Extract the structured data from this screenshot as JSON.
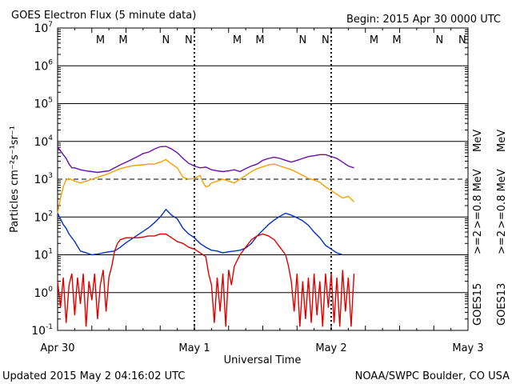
{
  "chart_data": {
    "type": "line",
    "title": "GOES Electron Flux (5 minute data)",
    "begin_label": "Begin: 2015 Apr 30 0000 UTC",
    "xlabel": "Universal Time",
    "ylabel": "Particles cm⁻²s⁻¹sr⁻¹",
    "x_unit": "hours since 2015-04-30 00:00 UTC",
    "xlim": [
      0,
      72
    ],
    "ylim_log10": [
      -1,
      7
    ],
    "x_ticks": [
      {
        "x": 0,
        "label": "Apr 30"
      },
      {
        "x": 24,
        "label": "May 1"
      },
      {
        "x": 48,
        "label": "May 2"
      },
      {
        "x": 72,
        "label": "May 3"
      }
    ],
    "y_ticks": [
      {
        "exp": 7,
        "base": "10",
        "power": "7"
      },
      {
        "exp": 6,
        "base": "10",
        "power": "6"
      },
      {
        "exp": 5,
        "base": "10",
        "power": "5"
      },
      {
        "exp": 4,
        "base": "10",
        "power": "4"
      },
      {
        "exp": 3,
        "base": "10",
        "power": "3"
      },
      {
        "exp": 2,
        "base": "10",
        "power": "2"
      },
      {
        "exp": 1,
        "base": "10",
        "power": "1"
      },
      {
        "exp": 0,
        "base": "10",
        "power": "0"
      },
      {
        "exp": -1,
        "base": "10",
        "power": "-1"
      }
    ],
    "threshold_log10": 3,
    "eclipse_markers": [
      {
        "x": 7.5,
        "label": "M",
        "color": "#e00000"
      },
      {
        "x": 11.5,
        "label": "M",
        "color": "#0030c8"
      },
      {
        "x": 19.0,
        "label": "N",
        "color": "#e00000"
      },
      {
        "x": 23.0,
        "label": "N",
        "color": "#0030c8"
      },
      {
        "x": 31.5,
        "label": "M",
        "color": "#e00000"
      },
      {
        "x": 35.5,
        "label": "M",
        "color": "#0030c8"
      },
      {
        "x": 43.0,
        "label": "N",
        "color": "#e00000"
      },
      {
        "x": 47.0,
        "label": "N",
        "color": "#0030c8"
      },
      {
        "x": 55.5,
        "label": "M",
        "color": "#e00000"
      },
      {
        "x": 59.5,
        "label": "M",
        "color": "#0030c8"
      },
      {
        "x": 67.0,
        "label": "N",
        "color": "#e00000"
      },
      {
        "x": 71.0,
        "label": "N",
        "color": "#0030c8"
      }
    ],
    "midnight_lines_x": [
      24,
      48
    ],
    "series": [
      {
        "name": "GOES15 >=0.8 MeV",
        "color": "#6a0dad",
        "log10_points": [
          [
            0,
            3.85
          ],
          [
            0.5,
            3.75
          ],
          [
            1,
            3.65
          ],
          [
            1.5,
            3.55
          ],
          [
            2,
            3.4
          ],
          [
            2.5,
            3.3
          ],
          [
            3,
            3.3
          ],
          [
            4,
            3.25
          ],
          [
            5,
            3.22
          ],
          [
            6,
            3.2
          ],
          [
            7,
            3.18
          ],
          [
            8,
            3.2
          ],
          [
            9,
            3.22
          ],
          [
            10,
            3.3
          ],
          [
            11,
            3.38
          ],
          [
            12,
            3.45
          ],
          [
            13,
            3.52
          ],
          [
            14,
            3.6
          ],
          [
            15,
            3.68
          ],
          [
            16,
            3.72
          ],
          [
            17,
            3.8
          ],
          [
            18,
            3.86
          ],
          [
            19,
            3.87
          ],
          [
            20,
            3.8
          ],
          [
            21,
            3.7
          ],
          [
            22,
            3.55
          ],
          [
            23,
            3.42
          ],
          [
            24,
            3.35
          ],
          [
            25,
            3.3
          ],
          [
            26,
            3.32
          ],
          [
            27,
            3.25
          ],
          [
            28,
            3.22
          ],
          [
            29,
            3.2
          ],
          [
            30,
            3.22
          ],
          [
            31,
            3.25
          ],
          [
            32,
            3.2
          ],
          [
            33,
            3.28
          ],
          [
            34,
            3.35
          ],
          [
            35,
            3.4
          ],
          [
            36,
            3.5
          ],
          [
            37,
            3.55
          ],
          [
            38,
            3.58
          ],
          [
            39,
            3.55
          ],
          [
            40,
            3.5
          ],
          [
            41,
            3.45
          ],
          [
            42,
            3.5
          ],
          [
            43,
            3.55
          ],
          [
            44,
            3.6
          ],
          [
            45,
            3.62
          ],
          [
            46,
            3.65
          ],
          [
            47,
            3.65
          ],
          [
            48,
            3.6
          ],
          [
            49,
            3.55
          ],
          [
            50,
            3.45
          ],
          [
            51,
            3.35
          ],
          [
            52,
            3.3
          ]
        ]
      },
      {
        "name": "GOES13 >=0.8 MeV",
        "color": "#f5a000",
        "log10_points": [
          [
            0,
            2.1
          ],
          [
            0.5,
            2.5
          ],
          [
            1,
            2.8
          ],
          [
            1.5,
            2.98
          ],
          [
            2,
            3.02
          ],
          [
            3,
            2.95
          ],
          [
            4,
            2.9
          ],
          [
            5,
            2.95
          ],
          [
            6,
            3.0
          ],
          [
            7,
            3.05
          ],
          [
            8,
            3.1
          ],
          [
            9,
            3.15
          ],
          [
            10,
            3.22
          ],
          [
            11,
            3.28
          ],
          [
            12,
            3.32
          ],
          [
            13,
            3.35
          ],
          [
            14,
            3.37
          ],
          [
            15,
            3.38
          ],
          [
            16,
            3.4
          ],
          [
            17,
            3.4
          ],
          [
            18,
            3.45
          ],
          [
            19,
            3.52
          ],
          [
            20,
            3.4
          ],
          [
            21,
            3.3
          ],
          [
            22,
            3.05
          ],
          [
            23,
            3.0
          ],
          [
            24,
            3.02
          ],
          [
            25,
            3.1
          ],
          [
            25.5,
            2.92
          ],
          [
            26,
            2.8
          ],
          [
            26.5,
            2.82
          ],
          [
            27,
            2.9
          ],
          [
            28,
            2.95
          ],
          [
            29,
            3.0
          ],
          [
            30,
            2.95
          ],
          [
            31,
            2.9
          ],
          [
            32,
            3.0
          ],
          [
            33,
            3.1
          ],
          [
            34,
            3.2
          ],
          [
            35,
            3.28
          ],
          [
            36,
            3.33
          ],
          [
            37,
            3.38
          ],
          [
            38,
            3.4
          ],
          [
            39,
            3.35
          ],
          [
            40,
            3.3
          ],
          [
            41,
            3.25
          ],
          [
            42,
            3.18
          ],
          [
            43,
            3.1
          ],
          [
            44,
            3.02
          ],
          [
            45,
            2.98
          ],
          [
            46,
            2.92
          ],
          [
            47,
            2.8
          ],
          [
            48,
            2.7
          ],
          [
            49,
            2.6
          ],
          [
            50,
            2.5
          ],
          [
            51,
            2.55
          ],
          [
            52,
            2.4
          ]
        ]
      },
      {
        "name": "GOES15 >=2 MeV",
        "color": "#0030c8",
        "log10_points": [
          [
            0,
            2.1
          ],
          [
            0.5,
            1.95
          ],
          [
            1,
            1.8
          ],
          [
            1.5,
            1.7
          ],
          [
            2,
            1.55
          ],
          [
            3,
            1.35
          ],
          [
            4,
            1.1
          ],
          [
            5,
            1.05
          ],
          [
            6,
            1.0
          ],
          [
            7,
            1.02
          ],
          [
            8,
            1.05
          ],
          [
            9,
            1.08
          ],
          [
            10,
            1.1
          ],
          [
            11,
            1.2
          ],
          [
            12,
            1.32
          ],
          [
            13,
            1.42
          ],
          [
            14,
            1.52
          ],
          [
            15,
            1.62
          ],
          [
            16,
            1.72
          ],
          [
            17,
            1.85
          ],
          [
            18,
            2.0
          ],
          [
            19,
            2.2
          ],
          [
            20,
            2.05
          ],
          [
            21,
            1.95
          ],
          [
            22,
            1.7
          ],
          [
            23,
            1.55
          ],
          [
            24,
            1.45
          ],
          [
            25,
            1.3
          ],
          [
            26,
            1.2
          ],
          [
            27,
            1.12
          ],
          [
            28,
            1.1
          ],
          [
            29,
            1.05
          ],
          [
            30,
            1.08
          ],
          [
            31,
            1.1
          ],
          [
            32,
            1.12
          ],
          [
            33,
            1.18
          ],
          [
            34,
            1.3
          ],
          [
            35,
            1.5
          ],
          [
            36,
            1.65
          ],
          [
            37,
            1.8
          ],
          [
            38,
            1.92
          ],
          [
            39,
            2.02
          ],
          [
            40,
            2.1
          ],
          [
            41,
            2.05
          ],
          [
            42,
            1.98
          ],
          [
            43,
            1.9
          ],
          [
            44,
            1.78
          ],
          [
            45,
            1.6
          ],
          [
            46,
            1.45
          ],
          [
            47,
            1.25
          ],
          [
            48,
            1.15
          ],
          [
            49,
            1.05
          ],
          [
            50,
            1.0
          ]
        ]
      },
      {
        "name": "GOES13 >=2 MeV",
        "color": "#e00000",
        "log10_points": [
          [
            0,
            0.3
          ],
          [
            0.5,
            -0.4
          ],
          [
            1,
            0.4
          ],
          [
            1.5,
            -0.8
          ],
          [
            2,
            0.2
          ],
          [
            2.5,
            0.5
          ],
          [
            3,
            -0.6
          ],
          [
            3.5,
            0.4
          ],
          [
            4,
            -0.3
          ],
          [
            4.5,
            0.5
          ],
          [
            5,
            -0.9
          ],
          [
            5.5,
            0.3
          ],
          [
            6,
            -0.2
          ],
          [
            6.5,
            0.5
          ],
          [
            7,
            -0.7
          ],
          [
            7.5,
            0.2
          ],
          [
            8,
            0.6
          ],
          [
            8.5,
            -0.5
          ],
          [
            9,
            0.4
          ],
          [
            9.5,
            0.7
          ],
          [
            10,
            1.1
          ],
          [
            10.5,
            1.3
          ],
          [
            11,
            1.4
          ],
          [
            12,
            1.45
          ],
          [
            13,
            1.45
          ],
          [
            14,
            1.45
          ],
          [
            15,
            1.47
          ],
          [
            16,
            1.5
          ],
          [
            17,
            1.5
          ],
          [
            18,
            1.55
          ],
          [
            19,
            1.55
          ],
          [
            20,
            1.45
          ],
          [
            21,
            1.35
          ],
          [
            22,
            1.3
          ],
          [
            23,
            1.2
          ],
          [
            24,
            1.15
          ],
          [
            25,
            1.05
          ],
          [
            26,
            0.95
          ],
          [
            26.5,
            0.5
          ],
          [
            27,
            0.2
          ],
          [
            27.5,
            -0.8
          ],
          [
            28,
            0.4
          ],
          [
            28.5,
            -0.5
          ],
          [
            29,
            0.5
          ],
          [
            29.5,
            -0.9
          ],
          [
            30,
            0.6
          ],
          [
            30.5,
            0.2
          ],
          [
            31,
            0.7
          ],
          [
            32,
            1.0
          ],
          [
            33,
            1.2
          ],
          [
            34,
            1.4
          ],
          [
            35,
            1.5
          ],
          [
            36,
            1.55
          ],
          [
            37,
            1.5
          ],
          [
            38,
            1.4
          ],
          [
            39,
            1.2
          ],
          [
            40,
            1.0
          ],
          [
            40.5,
            0.7
          ],
          [
            41,
            0.3
          ],
          [
            41.5,
            -0.5
          ],
          [
            42,
            0.5
          ],
          [
            42.5,
            -0.9
          ],
          [
            43,
            0.3
          ],
          [
            43.5,
            -0.7
          ],
          [
            44,
            0.4
          ],
          [
            44.5,
            -0.8
          ],
          [
            45,
            0.5
          ],
          [
            45.5,
            -0.6
          ],
          [
            46,
            0.3
          ],
          [
            46.5,
            -0.9
          ],
          [
            47,
            0.5
          ],
          [
            47.5,
            -0.4
          ],
          [
            48,
            0.5
          ],
          [
            48.5,
            -0.8
          ],
          [
            49,
            0.4
          ],
          [
            49.5,
            -0.9
          ],
          [
            50,
            0.6
          ],
          [
            50.5,
            -0.5
          ],
          [
            51,
            0.4
          ],
          [
            51.5,
            -0.9
          ],
          [
            52,
            0.5
          ]
        ]
      }
    ],
    "right_legend": [
      {
        "label": ">=0.8 MeV",
        "color": "#6a0dad",
        "satellite": "GOES15"
      },
      {
        "label": ">=0.8 MeV",
        "color": "#f5a000",
        "satellite": "GOES13"
      },
      {
        "label": ">=2",
        "color": "#0030c8",
        "satellite": "GOES15"
      },
      {
        "label": ">=2",
        "color": "#e00000",
        "satellite": "GOES13"
      }
    ],
    "satellite_labels": [
      "GOES15",
      "GOES13"
    ],
    "mev_label": "MeV"
  },
  "footer": {
    "updated": "Updated 2015 May  2 04:16:02 UTC",
    "source": "NOAA/SWPC Boulder, CO USA"
  }
}
